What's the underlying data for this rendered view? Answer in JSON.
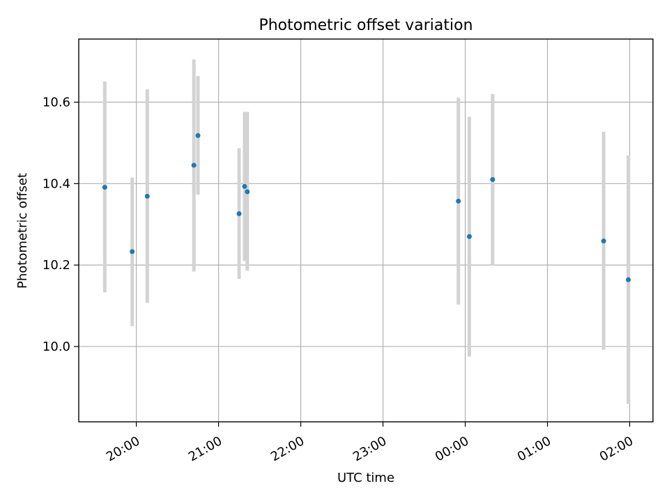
{
  "chart_data": {
    "type": "scatter",
    "title": "Photometric offset variation",
    "xlabel": "UTC time",
    "ylabel": "Photometric offset",
    "x_start": "19:17",
    "xlim": [
      "19:18",
      "02:17"
    ],
    "ylim": [
      9.815,
      10.755
    ],
    "grid": true,
    "x_ticks": [
      "20:00",
      "21:00",
      "22:00",
      "23:00",
      "00:00",
      "01:00",
      "02:00"
    ],
    "y_ticks": [
      10.0,
      10.2,
      10.4,
      10.6
    ],
    "y_tick_labels": [
      "10.0",
      "10.2",
      "10.4",
      "10.6"
    ],
    "marker_color": "#1f77b4",
    "errorbar_color": "#d3d3d3",
    "series": [
      {
        "points": [
          {
            "x": "19:37",
            "y": 10.391,
            "ylow": 10.133,
            "yhigh": 10.651
          },
          {
            "x": "19:57",
            "y": 10.233,
            "ylow": 10.05,
            "yhigh": 10.415
          },
          {
            "x": "20:08",
            "y": 10.369,
            "ylow": 10.107,
            "yhigh": 10.632
          },
          {
            "x": "20:42",
            "y": 10.445,
            "ylow": 10.184,
            "yhigh": 10.705
          },
          {
            "x": "20:45",
            "y": 10.518,
            "ylow": 10.373,
            "yhigh": 10.664
          },
          {
            "x": "21:15",
            "y": 10.326,
            "ylow": 10.166,
            "yhigh": 10.487
          },
          {
            "x": "21:19",
            "y": 10.393,
            "ylow": 10.21,
            "yhigh": 10.576
          },
          {
            "x": "21:21",
            "y": 10.38,
            "ylow": 10.186,
            "yhigh": 10.576
          },
          {
            "x": "23:55",
            "y": 10.357,
            "ylow": 10.103,
            "yhigh": 10.611
          },
          {
            "x": "00:03",
            "y": 10.27,
            "ylow": 9.975,
            "yhigh": 10.564
          },
          {
            "x": "00:20",
            "y": 10.41,
            "ylow": 10.199,
            "yhigh": 10.62
          },
          {
            "x": "01:41",
            "y": 10.259,
            "ylow": 9.992,
            "yhigh": 10.527
          },
          {
            "x": "01:59",
            "y": 10.164,
            "ylow": 9.859,
            "yhigh": 10.469
          }
        ]
      }
    ]
  }
}
